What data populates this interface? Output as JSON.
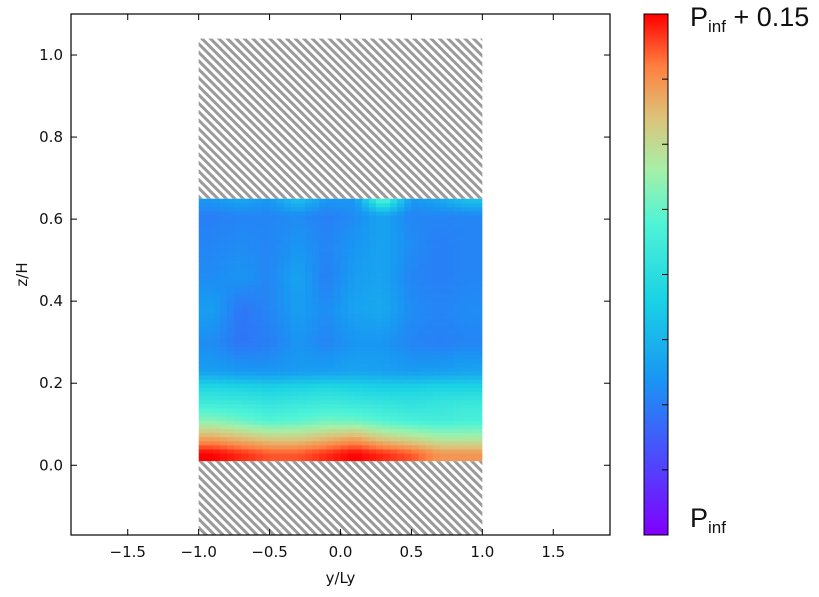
{
  "chart_data": {
    "type": "heatmap",
    "title": "",
    "xlabel": "y/Ly",
    "ylabel": "z/H",
    "xlim": [
      -1.9,
      1.9
    ],
    "ylim": [
      -0.17,
      1.1
    ],
    "x_ticks": [
      -1.5,
      -1.0,
      -0.5,
      0.0,
      0.5,
      1.0,
      1.5
    ],
    "x_tick_labels": [
      "−1.5",
      "−1.0",
      "−0.5",
      "0.0",
      "0.5",
      "1.0",
      "1.5"
    ],
    "y_ticks": [
      0.0,
      0.2,
      0.4,
      0.6,
      0.8,
      1.0
    ],
    "y_tick_labels": [
      "0.0",
      "0.2",
      "0.4",
      "0.6",
      "0.8",
      "1.0"
    ],
    "grid": false,
    "colormap": "rainbow",
    "colorbar": {
      "min_label": {
        "base": "P",
        "sub": "inf",
        "suffix": ""
      },
      "max_label": {
        "base": "P",
        "sub": "inf",
        "suffix": " + 0.15"
      },
      "min": 0.0,
      "max": 0.15
    },
    "hatched_regions": [
      {
        "x": [
          -1.0,
          1.0
        ],
        "z": [
          0.65,
          1.04
        ]
      },
      {
        "x": [
          -1.0,
          1.0
        ],
        "z": [
          -0.17,
          0.01
        ]
      }
    ],
    "field": {
      "x_extent": [
        -1.0,
        1.0
      ],
      "z_extent": [
        0.01,
        0.65
      ],
      "z_rows": [
        0.03,
        0.07,
        0.11,
        0.15,
        0.19,
        0.23,
        0.3,
        0.38,
        0.46,
        0.54,
        0.61,
        0.645
      ],
      "x_cols": [
        -0.9,
        -0.7,
        -0.5,
        -0.3,
        -0.1,
        0.1,
        0.3,
        0.5,
        0.7,
        0.9
      ],
      "values": [
        [
          0.15,
          0.145,
          0.14,
          0.14,
          0.145,
          0.15,
          0.145,
          0.14,
          0.13,
          0.13
        ],
        [
          0.125,
          0.12,
          0.115,
          0.115,
          0.12,
          0.125,
          0.115,
          0.11,
          0.105,
          0.105
        ],
        [
          0.1,
          0.095,
          0.09,
          0.092,
          0.096,
          0.095,
          0.09,
          0.087,
          0.085,
          0.087
        ],
        [
          0.085,
          0.083,
          0.08,
          0.082,
          0.084,
          0.082,
          0.08,
          0.078,
          0.08,
          0.082
        ],
        [
          0.072,
          0.07,
          0.068,
          0.07,
          0.072,
          0.07,
          0.068,
          0.068,
          0.07,
          0.07
        ],
        [
          0.048,
          0.046,
          0.045,
          0.047,
          0.048,
          0.05,
          0.049,
          0.047,
          0.048,
          0.05
        ],
        [
          0.042,
          0.035,
          0.038,
          0.045,
          0.04,
          0.045,
          0.045,
          0.04,
          0.038,
          0.04
        ],
        [
          0.048,
          0.035,
          0.04,
          0.048,
          0.042,
          0.05,
          0.052,
          0.042,
          0.04,
          0.042
        ],
        [
          0.042,
          0.045,
          0.04,
          0.05,
          0.038,
          0.048,
          0.05,
          0.04,
          0.038,
          0.04
        ],
        [
          0.04,
          0.042,
          0.04,
          0.045,
          0.04,
          0.045,
          0.05,
          0.042,
          0.038,
          0.04
        ],
        [
          0.038,
          0.04,
          0.04,
          0.042,
          0.038,
          0.042,
          0.05,
          0.04,
          0.04,
          0.04
        ],
        [
          0.045,
          0.05,
          0.045,
          0.06,
          0.045,
          0.045,
          0.09,
          0.045,
          0.05,
          0.06
        ]
      ]
    }
  }
}
